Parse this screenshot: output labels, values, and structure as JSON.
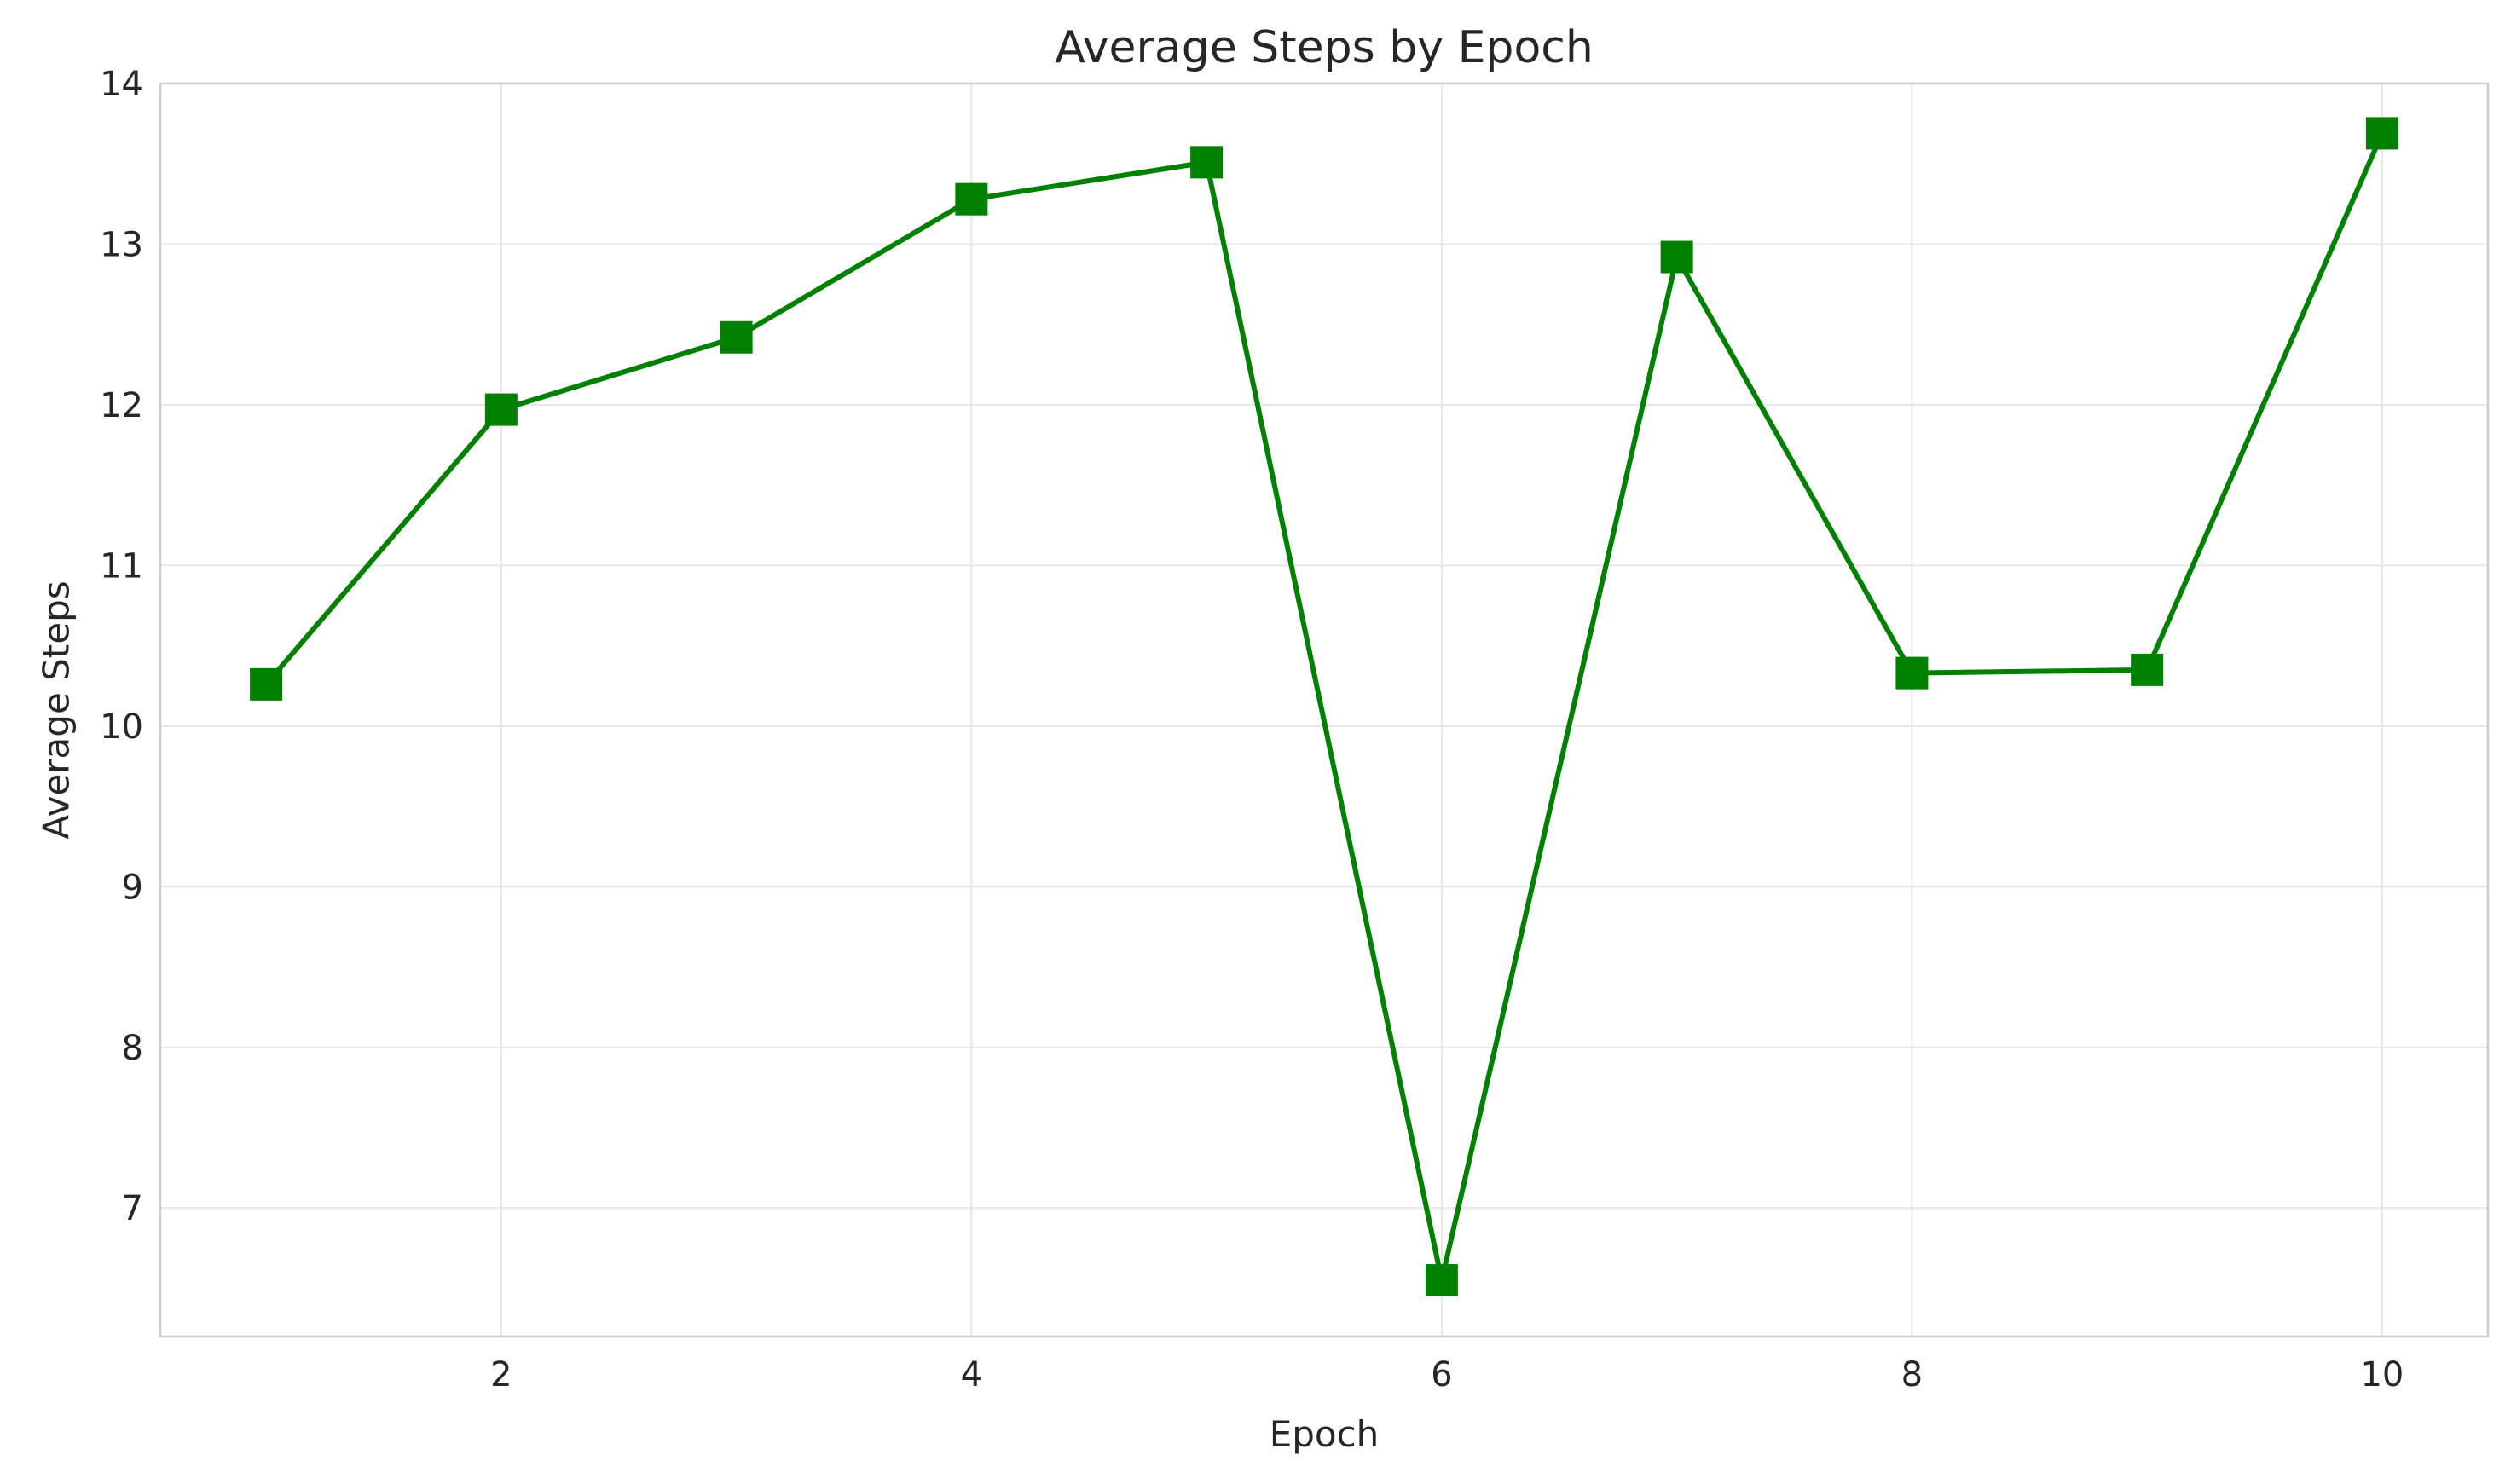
{
  "chart_data": {
    "type": "line",
    "title": "Average Steps by Epoch",
    "xlabel": "Epoch",
    "ylabel": "Average Steps",
    "xlim": [
      0.55,
      10.45
    ],
    "ylim": [
      6.2,
      14.0
    ],
    "x_ticks": [
      2,
      4,
      6,
      8,
      10
    ],
    "y_ticks": [
      7,
      8,
      9,
      10,
      11,
      12,
      13,
      14
    ],
    "grid": true,
    "series": [
      {
        "color": "#008000",
        "marker": "square",
        "x": [
          1,
          2,
          3,
          4,
          5,
          6,
          7,
          8,
          9,
          10
        ],
        "y": [
          10.26,
          11.97,
          12.42,
          13.28,
          13.51,
          6.55,
          12.92,
          10.33,
          10.35,
          13.69
        ]
      }
    ]
  }
}
